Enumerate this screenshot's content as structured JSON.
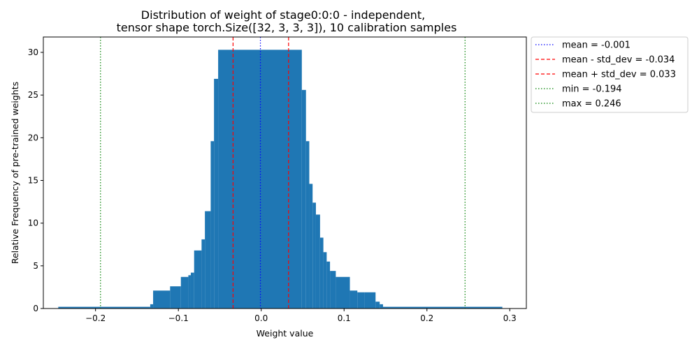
{
  "chart_data": {
    "type": "bar",
    "title_lines": [
      "Distribution of weight of stage0:0:0 - independent,",
      "tensor shape torch.Size([32, 3, 3, 3]), 10 calibration samples"
    ],
    "xlabel": "Weight value",
    "ylabel": "Relative Frequency of pre-trained weights",
    "xlim": [
      -0.263,
      0.32
    ],
    "ylim": [
      0,
      31.8
    ],
    "xticks": [
      -0.2,
      -0.1,
      0.0,
      0.1,
      0.2,
      0.3
    ],
    "xtick_labels": [
      "−0.2",
      "−0.1",
      "0.0",
      "0.1",
      "0.2",
      "0.3"
    ],
    "yticks": [
      0,
      5,
      10,
      15,
      20,
      25,
      30
    ],
    "ytick_labels": [
      "0",
      "5",
      "10",
      "15",
      "20",
      "25",
      "30"
    ],
    "grid": false,
    "legend_position": "outside-right",
    "bar_color": "#1f77b4",
    "histogram": [
      {
        "x0": -0.245,
        "x1": -0.134,
        "value": 0.2
      },
      {
        "x0": -0.134,
        "x1": -0.1305,
        "value": 0.5
      },
      {
        "x0": -0.1305,
        "x1": -0.11,
        "value": 2.1
      },
      {
        "x0": -0.11,
        "x1": -0.097,
        "value": 2.6
      },
      {
        "x0": -0.097,
        "x1": -0.088,
        "value": 3.7
      },
      {
        "x0": -0.088,
        "x1": -0.085,
        "value": 3.9
      },
      {
        "x0": -0.085,
        "x1": -0.081,
        "value": 4.2
      },
      {
        "x0": -0.081,
        "x1": -0.072,
        "value": 6.8
      },
      {
        "x0": -0.072,
        "x1": -0.068,
        "value": 8.1
      },
      {
        "x0": -0.068,
        "x1": -0.061,
        "value": 11.4
      },
      {
        "x0": -0.061,
        "x1": -0.057,
        "value": 19.6
      },
      {
        "x0": -0.057,
        "x1": -0.052,
        "value": 26.9
      },
      {
        "x0": -0.052,
        "x1": 0.049,
        "value": 30.3
      },
      {
        "x0": 0.049,
        "x1": 0.054,
        "value": 25.6
      },
      {
        "x0": 0.054,
        "x1": 0.058,
        "value": 19.6
      },
      {
        "x0": 0.058,
        "x1": 0.062,
        "value": 14.6
      },
      {
        "x0": 0.062,
        "x1": 0.066,
        "value": 12.4
      },
      {
        "x0": 0.066,
        "x1": 0.071,
        "value": 11.0
      },
      {
        "x0": 0.071,
        "x1": 0.075,
        "value": 8.3
      },
      {
        "x0": 0.075,
        "x1": 0.079,
        "value": 6.6
      },
      {
        "x0": 0.079,
        "x1": 0.083,
        "value": 5.5
      },
      {
        "x0": 0.083,
        "x1": 0.09,
        "value": 4.4
      },
      {
        "x0": 0.09,
        "x1": 0.107,
        "value": 3.7
      },
      {
        "x0": 0.107,
        "x1": 0.116,
        "value": 2.1
      },
      {
        "x0": 0.116,
        "x1": 0.125,
        "value": 1.9
      },
      {
        "x0": 0.125,
        "x1": 0.138,
        "value": 1.9
      },
      {
        "x0": 0.138,
        "x1": 0.143,
        "value": 0.8
      },
      {
        "x0": 0.143,
        "x1": 0.147,
        "value": 0.5
      },
      {
        "x0": 0.147,
        "x1": 0.291,
        "value": 0.2
      }
    ],
    "lines": [
      {
        "label": "mean = -0.001",
        "x": -0.001,
        "color": "#0000ff",
        "style": "dotted"
      },
      {
        "label": "mean - std_dev = -0.034",
        "x": -0.034,
        "color": "#ff0000",
        "style": "dashed"
      },
      {
        "label": "mean + std_dev = 0.033",
        "x": 0.033,
        "color": "#ff0000",
        "style": "dashed"
      },
      {
        "label": "min = -0.194",
        "x": -0.194,
        "color": "#008000",
        "style": "dotted"
      },
      {
        "label": "max = 0.246",
        "x": 0.246,
        "color": "#008000",
        "style": "dotted"
      }
    ]
  }
}
